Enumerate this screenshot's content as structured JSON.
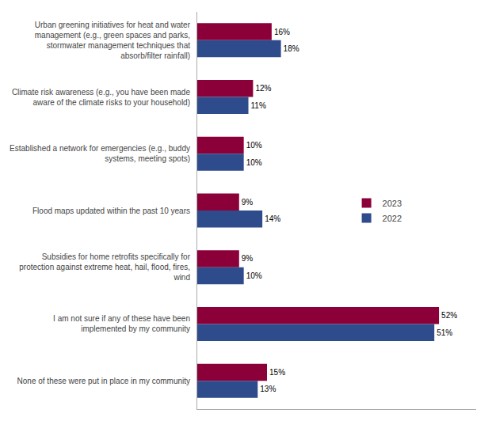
{
  "chart_data": {
    "type": "bar",
    "orientation": "horizontal",
    "categories": [
      "Urban greening initiatives for heat and water\nmanagement (e.g., green spaces and parks,\nstormwater management techniques that\nabsorb/filter rainfall)",
      "Climate risk awareness (e.g., you have been made\naware of the climate risks to your household)",
      "Established a network for emergencies (e.g., buddy\nsystems, meeting spots)",
      "Flood maps updated within the past 10 years",
      "Subsidies for home retrofits specifically for\nprotection against extreme heat, hail, flood, fires,\nwind",
      "I am not sure if any of these have been\nimplemented by my community",
      "None of these were put in place in my community"
    ],
    "series": [
      {
        "name": "2023",
        "color": "#8B0038",
        "values": [
          16,
          12,
          10,
          9,
          9,
          52,
          15
        ],
        "value_labels": [
          "16%",
          "12%",
          "10%",
          "9%",
          "9%",
          "52%",
          "15%"
        ]
      },
      {
        "name": "2022",
        "color": "#2E4B8C",
        "values": [
          18,
          11,
          10,
          14,
          10,
          51,
          13
        ],
        "value_labels": [
          "18%",
          "11%",
          "10%",
          "14%",
          "10%",
          "51%",
          "13%"
        ]
      }
    ],
    "xlim": [
      0,
      60
    ],
    "xticks": [],
    "tick_labels": "y",
    "data_labels": true,
    "grid": false,
    "legend": "right"
  }
}
